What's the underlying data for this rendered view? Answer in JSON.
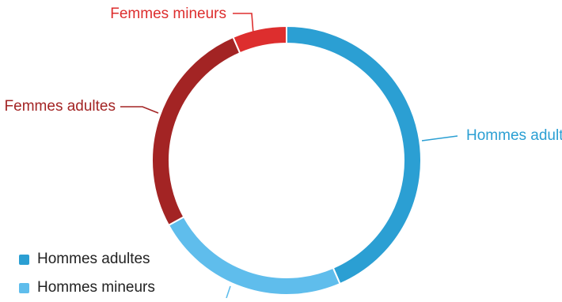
{
  "chart_data": {
    "type": "pie",
    "variant": "donut",
    "slices": [
      {
        "label": "Hommes adultes",
        "value": 43.5,
        "color": "#2b9fd3"
      },
      {
        "label": "Hommes mineurs",
        "value": 23.5,
        "color": "#5fbdec"
      },
      {
        "label": "Femmes adultes",
        "value": 26.5,
        "color": "#a32424"
      },
      {
        "label": "Femmes mineurs",
        "value": 6.5,
        "color": "#dd2e2e"
      }
    ],
    "legend": {
      "placement": "bottom-left",
      "items": [
        "Hommes adultes",
        "Hommes mineurs"
      ]
    }
  }
}
